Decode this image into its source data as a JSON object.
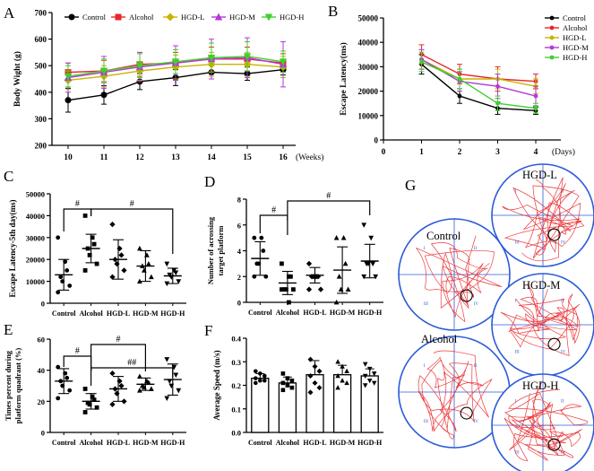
{
  "figure": "composite",
  "colors": {
    "control": "#000000",
    "alcohol": "#e8262a",
    "hgd_l": "#c8b400",
    "hgd_m": "#b23ad6",
    "hgd_h": "#3ed02a",
    "track": "#e8262a",
    "grid": "#2c5bd8"
  },
  "chart_data": [
    {
      "panel": "A",
      "type": "line",
      "title": "",
      "xlabel": "",
      "x_unit": "(Weeks)",
      "ylabel": "Body Wight (g)",
      "x": [
        10,
        11,
        12,
        13,
        14,
        15,
        16
      ],
      "ylim": [
        200,
        700
      ],
      "yticks": [
        200,
        300,
        400,
        500,
        600,
        700
      ],
      "legend": "top",
      "series": [
        {
          "name": "Control",
          "values": [
            370,
            390,
            440,
            455,
            475,
            470,
            485
          ],
          "err": [
            45,
            35,
            30,
            30,
            25,
            25,
            20
          ]
        },
        {
          "name": "Alcohol",
          "values": [
            475,
            480,
            505,
            510,
            525,
            525,
            510
          ],
          "err": [
            35,
            40,
            45,
            40,
            45,
            45,
            35
          ]
        },
        {
          "name": "HGD-L",
          "values": [
            445,
            460,
            480,
            495,
            505,
            505,
            495
          ],
          "err": [
            35,
            40,
            35,
            45,
            45,
            45,
            40
          ]
        },
        {
          "name": "HGD-M",
          "values": [
            455,
            475,
            495,
            510,
            525,
            530,
            505
          ],
          "err": [
            55,
            60,
            55,
            65,
            75,
            75,
            85
          ]
        },
        {
          "name": "HGD-H",
          "values": [
            460,
            480,
            500,
            515,
            530,
            535,
            515
          ],
          "err": [
            40,
            45,
            45,
            45,
            55,
            55,
            40
          ]
        }
      ]
    },
    {
      "panel": "B",
      "type": "line",
      "title": "",
      "xlabel": "",
      "x_unit": "(Days)",
      "ylabel": "Escape Latency(ms)",
      "x": [
        1,
        2,
        3,
        4
      ],
      "xlim": [
        0,
        4
      ],
      "xticks": [
        0,
        1,
        2,
        3,
        4
      ],
      "ylim": [
        0,
        50000
      ],
      "yticks": [
        0,
        10000,
        20000,
        30000,
        40000,
        50000
      ],
      "legend": "top-right",
      "series": [
        {
          "name": "Control",
          "values": [
            31000,
            18000,
            13000,
            12000
          ],
          "err": [
            4000,
            3000,
            2500,
            1500
          ]
        },
        {
          "name": "Alcohol",
          "values": [
            35000,
            27000,
            25000,
            24000
          ],
          "err": [
            4000,
            4000,
            5000,
            3000
          ]
        },
        {
          "name": "HGD-L",
          "values": [
            33000,
            25000,
            25000,
            22000
          ],
          "err": [
            4000,
            4000,
            4000,
            3000
          ]
        },
        {
          "name": "HGD-M",
          "values": [
            33000,
            24000,
            22000,
            18000
          ],
          "err": [
            4000,
            4000,
            5000,
            4000
          ]
        },
        {
          "name": "HGD-H",
          "values": [
            32000,
            25000,
            15000,
            13000
          ],
          "err": [
            4000,
            4000,
            3000,
            2000
          ]
        }
      ]
    },
    {
      "panel": "C",
      "type": "scatter",
      "ylabel": "Escape Latency-5th day(ms)",
      "categories": [
        "Control",
        "Alcohol",
        "HGD-L",
        "HGD-M",
        "HGD-H"
      ],
      "ylim": [
        0,
        50000
      ],
      "yticks": [
        0,
        10000,
        20000,
        30000,
        40000,
        50000
      ],
      "means": [
        13000,
        25000,
        20000,
        17000,
        12500
      ],
      "sd": [
        7000,
        6500,
        9000,
        7000,
        3500
      ],
      "points": [
        [
          30000,
          19000,
          15000,
          12000,
          10000,
          8000,
          5000
        ],
        [
          40000,
          30000,
          27000,
          25000,
          22000,
          18000,
          15000
        ],
        [
          36000,
          25000,
          22000,
          20000,
          18000,
          15000,
          12000
        ],
        [
          25000,
          22000,
          18000,
          17000,
          15000,
          12000,
          10000
        ],
        [
          18000,
          15000,
          14000,
          13000,
          12000,
          10000,
          9000
        ]
      ],
      "significance": [
        {
          "from": "Control",
          "to": "Alcohol",
          "label": "#"
        },
        {
          "from": "Alcohol",
          "to": "HGD-H",
          "label": "#"
        }
      ]
    },
    {
      "panel": "D",
      "type": "scatter",
      "ylabel": "Number of acrossing target platform",
      "categories": [
        "Control",
        "Alcohol",
        "HGD-L",
        "HGD-M",
        "HGD-H"
      ],
      "ylim": [
        0,
        8
      ],
      "yticks": [
        0,
        2,
        4,
        6,
        8
      ],
      "means": [
        3.4,
        1.5,
        2.1,
        2.5,
        3.2
      ],
      "sd": [
        1.3,
        0.9,
        0.6,
        1.8,
        1.3
      ],
      "points": [
        [
          5,
          5,
          4,
          3,
          3,
          2,
          2
        ],
        [
          3,
          2,
          2,
          1,
          1,
          1,
          1,
          0
        ],
        [
          3,
          2,
          2,
          2,
          2,
          1,
          1
        ],
        [
          5,
          5,
          3,
          2,
          1,
          1,
          0
        ],
        [
          6,
          5,
          3,
          3,
          3,
          2,
          2
        ]
      ],
      "significance": [
        {
          "from": "Control",
          "to": "Alcohol",
          "label": "#"
        },
        {
          "from": "Alcohol",
          "to": "HGD-H",
          "label": "#"
        }
      ]
    },
    {
      "panel": "E",
      "type": "scatter",
      "ylabel": "Times percent during platform quadrant (%)",
      "categories": [
        "Control",
        "Alcohol",
        "HGD-L",
        "HGD-M",
        "HGD-H"
      ],
      "ylim": [
        0,
        60
      ],
      "yticks": [
        0,
        20,
        40,
        60
      ],
      "means": [
        33,
        20,
        28,
        31,
        34
      ],
      "sd": [
        8,
        5,
        8,
        4,
        10
      ],
      "points": [
        [
          42,
          38,
          35,
          33,
          30,
          27,
          22
        ],
        [
          28,
          23,
          21,
          19,
          18,
          16,
          13
        ],
        [
          38,
          33,
          30,
          28,
          25,
          20,
          18
        ],
        [
          36,
          33,
          32,
          30,
          29,
          28,
          27
        ],
        [
          47,
          42,
          37,
          33,
          30,
          27,
          22
        ]
      ],
      "significance": [
        {
          "from": "Control",
          "to": "Alcohol",
          "label": "#"
        },
        {
          "from": "Alcohol",
          "to": "HGD-M",
          "label": "#"
        },
        {
          "from": "Alcohol",
          "to": "HGD-H",
          "label": "##"
        }
      ]
    },
    {
      "panel": "F",
      "type": "bar",
      "ylabel": "Average Speed (m/s)",
      "categories": [
        "Control",
        "Alcohol",
        "HGD-L",
        "HGD-M",
        "HGD-H"
      ],
      "ylim": [
        0,
        0.4
      ],
      "yticks": [
        0.0,
        0.1,
        0.2,
        0.3,
        0.4
      ],
      "values": [
        0.23,
        0.21,
        0.245,
        0.245,
        0.24
      ],
      "sd": [
        0.02,
        0.025,
        0.06,
        0.04,
        0.03
      ],
      "points": [
        [
          0.26,
          0.25,
          0.24,
          0.23,
          0.22,
          0.22,
          0.21
        ],
        [
          0.25,
          0.23,
          0.22,
          0.21,
          0.2,
          0.19,
          0.18
        ],
        [
          0.31,
          0.28,
          0.26,
          0.24,
          0.21,
          0.19,
          0.17
        ],
        [
          0.3,
          0.28,
          0.26,
          0.24,
          0.22,
          0.21,
          0.19
        ],
        [
          0.29,
          0.27,
          0.25,
          0.24,
          0.22,
          0.21,
          0.2
        ]
      ]
    }
  ],
  "panel_g": {
    "label": "G",
    "tracks": [
      {
        "name": "Control",
        "quadrants": [
          "I",
          "II",
          "III",
          "IV"
        ]
      },
      {
        "name": "Alcohol",
        "quadrants": [
          "I",
          "II",
          "III",
          "IV"
        ]
      },
      {
        "name": "HGD-L",
        "quadrants": [
          "I",
          "II",
          "III",
          "IV"
        ]
      },
      {
        "name": "HGD-M",
        "quadrants": [
          "I",
          "II",
          "III",
          "IV"
        ]
      },
      {
        "name": "HGD-H",
        "quadrants": [
          "I",
          "II",
          "III",
          "IV"
        ]
      }
    ]
  }
}
